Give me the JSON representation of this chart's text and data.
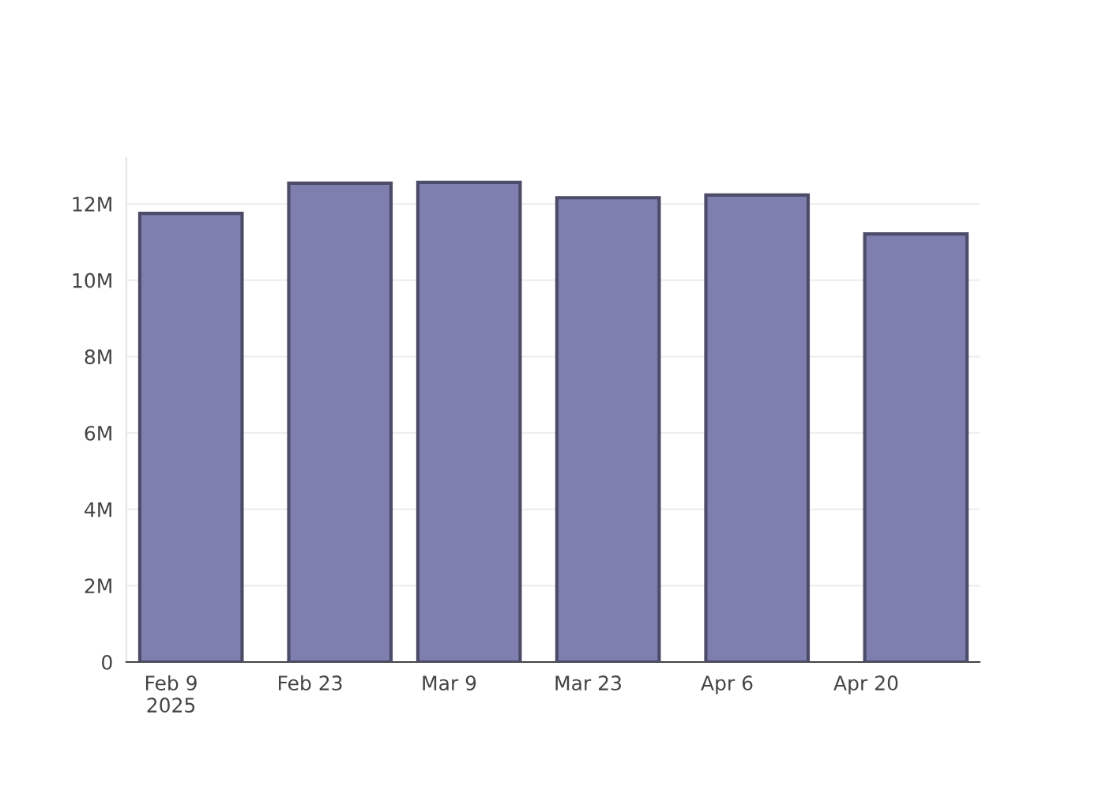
{
  "chart_data": {
    "type": "bar",
    "x": [
      "2025-02-11",
      "2025-02-26",
      "2025-03-11",
      "2025-03-25",
      "2025-04-09",
      "2025-04-25"
    ],
    "values": [
      11750000,
      12540000,
      12560000,
      12160000,
      12230000,
      11210000
    ],
    "color": "#7f7faf",
    "xlim": [
      "2025-02-04T12:00",
      "2025-05-01T10:00"
    ],
    "xticks": [
      {
        "value": "2025-02-09",
        "label": "Feb 9\n2025"
      },
      {
        "value": "2025-02-23",
        "label": "Feb 23"
      },
      {
        "value": "2025-03-09",
        "label": "Mar 9"
      },
      {
        "value": "2025-03-23",
        "label": "Mar 23"
      },
      {
        "value": "2025-04-06",
        "label": "Apr 6"
      },
      {
        "value": "2025-04-20",
        "label": "Apr 20"
      }
    ],
    "ylim": [
      0,
      13200000
    ],
    "yticks": [
      0,
      {
        "value": 2000000,
        "label": "2M"
      },
      {
        "value": 4000000,
        "label": "4M"
      },
      {
        "value": 6000000,
        "label": "6M"
      },
      {
        "value": 8000000,
        "label": "8M"
      },
      {
        "value": 10000000,
        "label": "10M"
      },
      {
        "value": 12000000,
        "label": "12M"
      }
    ],
    "grid": "y"
  }
}
